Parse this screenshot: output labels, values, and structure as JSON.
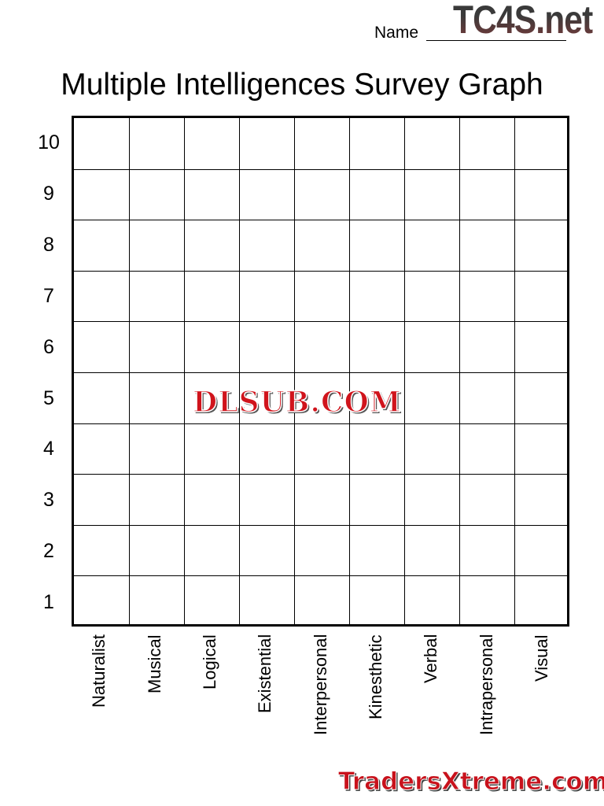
{
  "header": {
    "name_label": "Name",
    "logo": "TC4S.net"
  },
  "title": "Multiple Intelligences Survey Graph",
  "graph": {
    "y_labels": [
      "10",
      "9",
      "8",
      "7",
      "6",
      "5",
      "4",
      "3",
      "2",
      "1"
    ],
    "x_labels": [
      "Naturalist",
      "Musical",
      "Logical",
      "Existential",
      "Interpersonal",
      "Kinesthetic",
      "Verbal",
      "Intrapersonal",
      "Visual"
    ]
  },
  "watermarks": {
    "center": "DLSUB.COM",
    "bottom": "TradersXtreme.com"
  }
}
